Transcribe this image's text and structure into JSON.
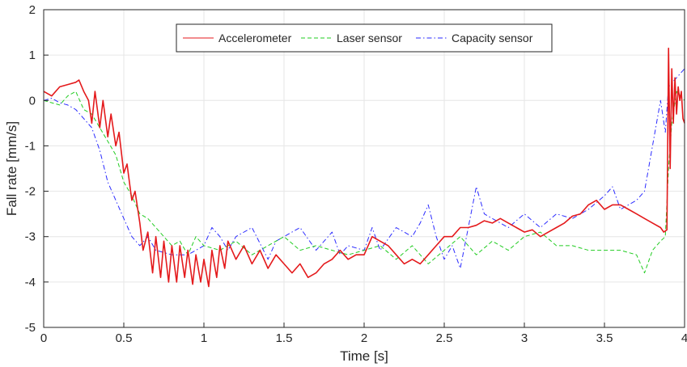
{
  "chart_data": {
    "type": "line",
    "title": "",
    "xlabel": "Time [s]",
    "ylabel": "Fall rate [mm/s]",
    "xlim": [
      0,
      4
    ],
    "ylim": [
      -5,
      2
    ],
    "xticks": [
      0,
      0.5,
      1,
      1.5,
      2,
      2.5,
      3,
      3.5,
      4
    ],
    "xtick_labels": [
      "0",
      "0.5",
      "1",
      "1.5",
      "2",
      "2.5",
      "3",
      "3.5",
      "4"
    ],
    "yticks": [
      -5,
      -4,
      -3,
      -2,
      -1,
      0,
      1,
      2
    ],
    "ytick_labels": [
      "-5",
      "-4",
      "-3",
      "-2",
      "-1",
      "0",
      "1",
      "2"
    ],
    "grid": true,
    "legend_position": "top-center",
    "series": [
      {
        "name": "Accelerometer",
        "color": "#e41a1c",
        "style": "solid",
        "x": [
          0,
          0.05,
          0.1,
          0.15,
          0.2,
          0.22,
          0.25,
          0.28,
          0.3,
          0.32,
          0.35,
          0.37,
          0.4,
          0.42,
          0.45,
          0.47,
          0.5,
          0.52,
          0.55,
          0.57,
          0.6,
          0.62,
          0.65,
          0.68,
          0.7,
          0.73,
          0.75,
          0.78,
          0.8,
          0.83,
          0.85,
          0.88,
          0.9,
          0.93,
          0.95,
          0.98,
          1.0,
          1.03,
          1.05,
          1.08,
          1.1,
          1.13,
          1.15,
          1.2,
          1.25,
          1.3,
          1.35,
          1.4,
          1.45,
          1.5,
          1.55,
          1.6,
          1.65,
          1.7,
          1.75,
          1.8,
          1.85,
          1.9,
          1.95,
          2.0,
          2.05,
          2.1,
          2.15,
          2.2,
          2.25,
          2.3,
          2.35,
          2.4,
          2.45,
          2.5,
          2.55,
          2.6,
          2.65,
          2.7,
          2.75,
          2.8,
          2.85,
          2.9,
          2.95,
          3.0,
          3.05,
          3.1,
          3.15,
          3.2,
          3.25,
          3.3,
          3.35,
          3.4,
          3.45,
          3.5,
          3.55,
          3.6,
          3.65,
          3.7,
          3.75,
          3.8,
          3.85,
          3.87,
          3.89,
          3.9,
          3.91,
          3.92,
          3.93,
          3.94,
          3.95,
          3.96,
          3.97,
          3.98,
          3.99,
          4.0
        ],
        "y": [
          0.2,
          0.1,
          0.3,
          0.35,
          0.4,
          0.45,
          0.2,
          0.0,
          -0.5,
          0.2,
          -0.6,
          0.0,
          -0.8,
          -0.3,
          -1.0,
          -0.7,
          -1.6,
          -1.4,
          -2.2,
          -2.0,
          -2.7,
          -3.3,
          -2.9,
          -3.8,
          -3.0,
          -3.9,
          -3.1,
          -4.0,
          -3.2,
          -4.0,
          -3.2,
          -3.9,
          -3.3,
          -4.05,
          -3.4,
          -4.0,
          -3.5,
          -4.1,
          -3.3,
          -3.9,
          -3.2,
          -3.7,
          -3.1,
          -3.5,
          -3.2,
          -3.6,
          -3.3,
          -3.7,
          -3.4,
          -3.6,
          -3.8,
          -3.6,
          -3.9,
          -3.8,
          -3.6,
          -3.5,
          -3.3,
          -3.5,
          -3.4,
          -3.4,
          -3.0,
          -3.1,
          -3.2,
          -3.4,
          -3.6,
          -3.5,
          -3.6,
          -3.4,
          -3.2,
          -3.0,
          -3.0,
          -2.8,
          -2.8,
          -2.75,
          -2.65,
          -2.7,
          -2.6,
          -2.7,
          -2.8,
          -2.9,
          -2.85,
          -3.0,
          -2.9,
          -2.8,
          -2.7,
          -2.55,
          -2.5,
          -2.3,
          -2.2,
          -2.4,
          -2.3,
          -2.3,
          -2.4,
          -2.5,
          -2.6,
          -2.7,
          -2.8,
          -2.9,
          -2.85,
          1.15,
          -1.5,
          0.7,
          -0.5,
          0.5,
          -0.3,
          0.3,
          0.0,
          0.2,
          -0.4,
          -0.5
        ]
      },
      {
        "name": "Laser sensor",
        "color": "#22cc22",
        "style": "dashed",
        "x": [
          0,
          0.05,
          0.1,
          0.15,
          0.2,
          0.25,
          0.3,
          0.35,
          0.4,
          0.45,
          0.5,
          0.55,
          0.6,
          0.65,
          0.7,
          0.75,
          0.8,
          0.85,
          0.9,
          0.95,
          1.0,
          1.1,
          1.2,
          1.3,
          1.4,
          1.5,
          1.6,
          1.7,
          1.8,
          1.9,
          2.0,
          2.1,
          2.2,
          2.3,
          2.4,
          2.5,
          2.6,
          2.7,
          2.8,
          2.9,
          3.0,
          3.1,
          3.2,
          3.3,
          3.4,
          3.5,
          3.6,
          3.7,
          3.75,
          3.8,
          3.85,
          3.88,
          3.9,
          3.92,
          3.95,
          4.0
        ],
        "y": [
          0.0,
          -0.05,
          -0.1,
          0.1,
          0.2,
          -0.2,
          -0.3,
          -0.6,
          -0.9,
          -1.2,
          -1.8,
          -2.1,
          -2.5,
          -2.6,
          -2.8,
          -3.0,
          -3.2,
          -3.1,
          -3.4,
          -3.0,
          -3.2,
          -3.3,
          -3.1,
          -3.4,
          -3.2,
          -3.0,
          -3.3,
          -3.2,
          -3.3,
          -3.4,
          -3.3,
          -3.2,
          -3.5,
          -3.2,
          -3.6,
          -3.3,
          -3.0,
          -3.4,
          -3.1,
          -3.3,
          -3.0,
          -2.9,
          -3.2,
          -3.2,
          -3.3,
          -3.3,
          -3.3,
          -3.4,
          -3.8,
          -3.3,
          -3.1,
          -3.0,
          -1.5,
          -0.5,
          0.2,
          0.0
        ]
      },
      {
        "name": "Capacity sensor",
        "color": "#2a2aff",
        "style": "dashdot",
        "x": [
          0,
          0.05,
          0.1,
          0.15,
          0.2,
          0.25,
          0.3,
          0.35,
          0.4,
          0.45,
          0.5,
          0.55,
          0.6,
          0.65,
          0.7,
          0.8,
          0.9,
          1.0,
          1.05,
          1.1,
          1.15,
          1.2,
          1.3,
          1.4,
          1.45,
          1.5,
          1.6,
          1.7,
          1.8,
          1.85,
          1.9,
          2.0,
          2.05,
          2.1,
          2.2,
          2.3,
          2.35,
          2.4,
          2.45,
          2.5,
          2.55,
          2.6,
          2.65,
          2.7,
          2.75,
          2.8,
          2.9,
          3.0,
          3.1,
          3.2,
          3.3,
          3.4,
          3.5,
          3.55,
          3.6,
          3.7,
          3.75,
          3.8,
          3.85,
          3.88,
          3.9,
          3.95,
          4.0
        ],
        "y": [
          0.0,
          0.05,
          -0.05,
          -0.1,
          -0.2,
          -0.4,
          -0.6,
          -1.1,
          -1.8,
          -2.2,
          -2.6,
          -3.0,
          -3.2,
          -3.0,
          -3.3,
          -3.4,
          -3.4,
          -3.2,
          -2.8,
          -3.0,
          -3.3,
          -3.0,
          -2.8,
          -3.5,
          -3.1,
          -3.0,
          -2.8,
          -3.3,
          -2.9,
          -3.4,
          -3.2,
          -3.3,
          -2.8,
          -3.3,
          -2.8,
          -3.0,
          -2.7,
          -2.3,
          -3.0,
          -3.5,
          -3.2,
          -3.7,
          -2.8,
          -1.9,
          -2.5,
          -2.6,
          -2.8,
          -2.5,
          -2.8,
          -2.5,
          -2.6,
          -2.4,
          -2.1,
          -1.9,
          -2.4,
          -2.2,
          -2.0,
          -1.0,
          0.0,
          -0.7,
          0.3,
          0.5,
          0.7
        ]
      }
    ]
  }
}
